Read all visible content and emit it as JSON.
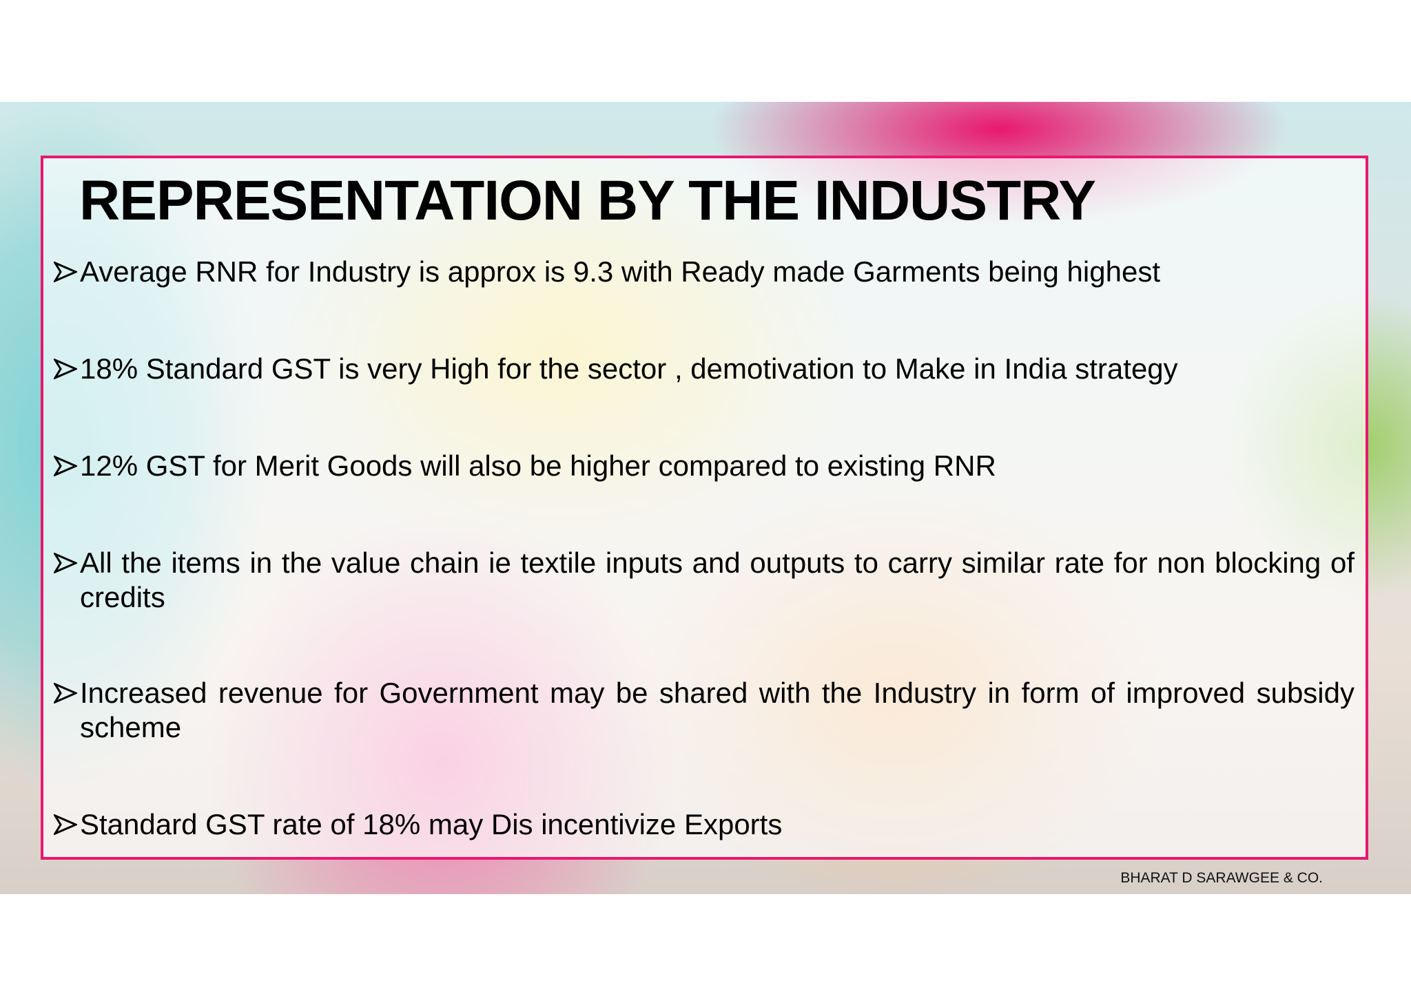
{
  "title": "REPRESENTATION BY THE INDUSTRY",
  "bullets": [
    "Average RNR for Industry is approx is 9.3 with Ready made Garments being highest",
    "18% Standard GST is very High for the sector , demotivation to Make in India strategy",
    "12% GST for Merit Goods will also be higher compared to existing RNR",
    "All the items in the value chain ie textile inputs and outputs to carry similar rate for non blocking of credits",
    "Increased revenue for Government may be shared with the Industry in form of improved subsidy scheme",
    "Standard GST rate of 18% may Dis incentivize Exports"
  ],
  "footer": "BHARAT D SARAWGEE & CO."
}
